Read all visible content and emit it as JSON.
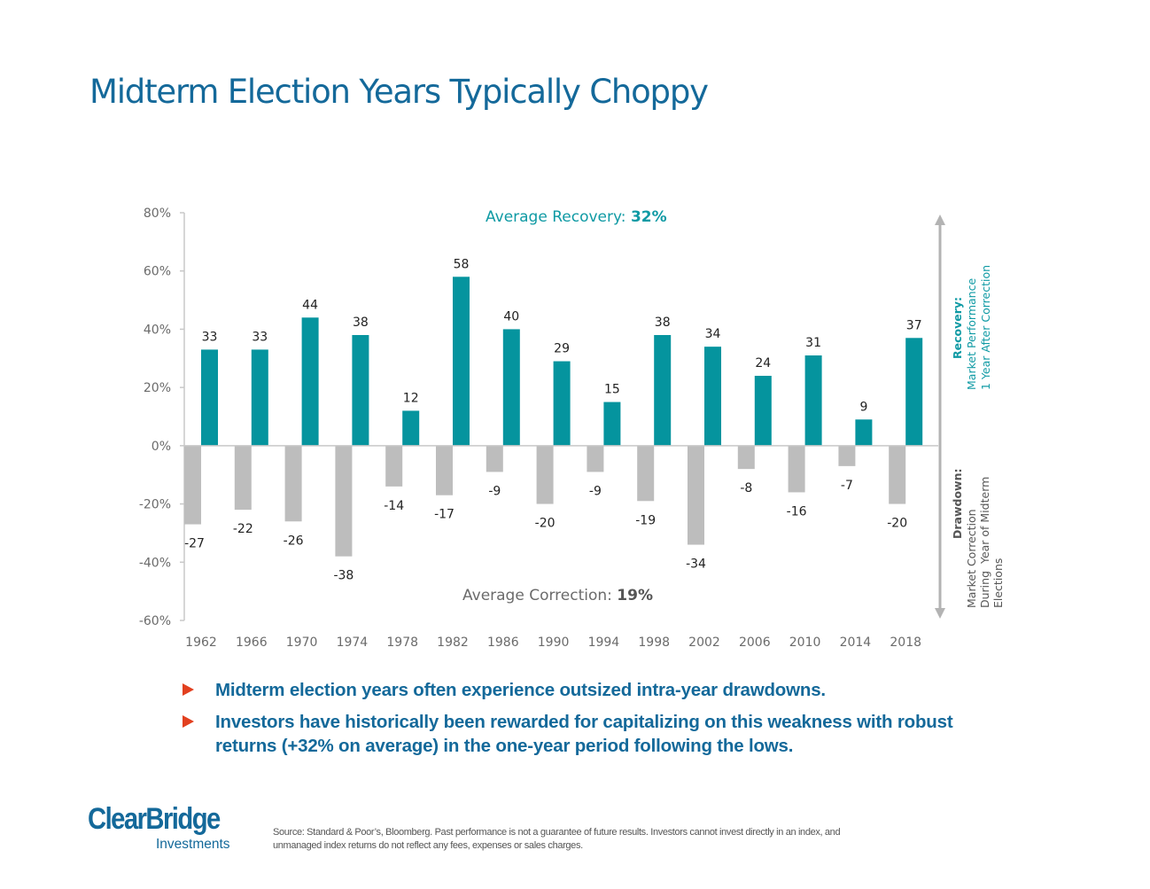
{
  "page": {
    "title": "Midterm Election Years Typically Choppy"
  },
  "chart_data": {
    "type": "bar",
    "title": "Midterm Election Years Typically Choppy",
    "xlabel": "",
    "ylabel": "",
    "ylim": [
      -60,
      80
    ],
    "yticks": [
      80,
      60,
      40,
      20,
      0,
      -20,
      -40,
      -60
    ],
    "ytick_labels": [
      "80%",
      "60%",
      "40%",
      "20%",
      "0%",
      "-20%",
      "-40%",
      "-60%"
    ],
    "categories": [
      "1962",
      "1966",
      "1970",
      "1974",
      "1978",
      "1982",
      "1986",
      "1990",
      "1994",
      "1998",
      "2002",
      "2006",
      "2010",
      "2014",
      "2018"
    ],
    "series": [
      {
        "name": "Drawdown",
        "color": "#bdbdbd",
        "values": [
          -27,
          -22,
          -26,
          -38,
          -14,
          -17,
          -9,
          -20,
          -9,
          -19,
          -34,
          -8,
          -16,
          -7,
          -20
        ],
        "labels": [
          "-27",
          "-22",
          "-26",
          "-38",
          "-14",
          "-17",
          "-9",
          "-20",
          "-9",
          "-19",
          "-34",
          "-8",
          "-16",
          "-7",
          "-20"
        ]
      },
      {
        "name": "Recovery",
        "color": "#05949e",
        "values": [
          33,
          33,
          44,
          38,
          12,
          58,
          40,
          29,
          15,
          38,
          34,
          24,
          31,
          9,
          37
        ],
        "labels": [
          "33",
          "33",
          "44",
          "38",
          "12",
          "58",
          "40",
          "29",
          "15",
          "38",
          "34",
          "24",
          "31",
          "9",
          "37"
        ]
      }
    ],
    "annotations": {
      "average_recovery": {
        "label": "Average Recovery: ",
        "value": "32%"
      },
      "average_correction": {
        "label": "Average Correction: ",
        "value": "19%"
      }
    },
    "side_legend": {
      "recovery": {
        "title": "Recovery:",
        "line1": "Market Performance",
        "line2": "1 Year After Correction"
      },
      "drawdown": {
        "title": "Drawdown:",
        "line1": "Market Correction",
        "line2": "During  Year of Midterm",
        "line3": "Elections"
      }
    },
    "grid": false,
    "legend": "right"
  },
  "bullets": [
    "Midterm election years often experience outsized intra-year drawdowns.",
    "Investors have historically been rewarded for capitalizing on this weakness with robust returns (+32% on average) in the one-year period following the lows."
  ],
  "footer": {
    "logo_main": "ClearBridge",
    "logo_sub": "Investments",
    "source": "Source: Standard & Poor’s, Bloomberg. Past performance is not a guarantee of future results. Investors cannot invest directly in an index, and unmanaged index returns do not reflect any fees, expenses or sales charges."
  },
  "colors": {
    "title": "#14699a",
    "recovery": "#05949e",
    "drawdown": "#bdbdbd",
    "bullet_marker": "#e2401f"
  }
}
